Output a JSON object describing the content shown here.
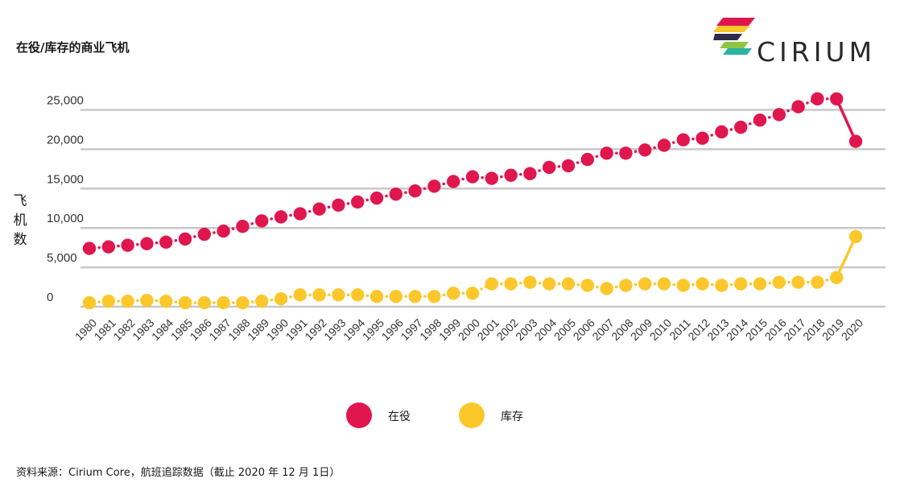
{
  "title": "在役/库存的商业飞机",
  "logo": {
    "text": "CIRIUM",
    "name": "cirium-logo"
  },
  "source": "资料来源：Cirium Core，航班追踪数据（截止 2020 年 12 月 1日）",
  "colors": {
    "in_service": "#e0174f",
    "storage": "#fcc72b",
    "grid": "#c8c8c8"
  },
  "chart_data": {
    "type": "line",
    "title": "在役/库存的商业飞机",
    "xlabel": "",
    "ylabel": "飞机数",
    "ylim": [
      0,
      25000
    ],
    "y_ticks": [
      "0",
      "5,000",
      "10,000",
      "15,000",
      "20,000",
      "25,000"
    ],
    "y_tick_values": [
      0,
      5000,
      10000,
      15000,
      20000,
      25000
    ],
    "grid": true,
    "legend_position": "bottom",
    "x": [
      "1980",
      "1981",
      "1982",
      "1983",
      "1984",
      "1985",
      "1986",
      "1987",
      "1988",
      "1989",
      "1990",
      "1991",
      "1992",
      "1993",
      "1994",
      "1995",
      "1996",
      "1997",
      "1998",
      "1999",
      "2000",
      "2001",
      "2002",
      "2003",
      "2004",
      "2005",
      "2006",
      "2007",
      "2008",
      "2009",
      "2010",
      "2011",
      "2012",
      "2013",
      "2014",
      "2015",
      "2016",
      "2017",
      "2018",
      "2019",
      "2020"
    ],
    "series": [
      {
        "name": "在役",
        "color": "#e0174f",
        "values": [
          7400,
          7600,
          7800,
          8000,
          8200,
          8600,
          9200,
          9600,
          10200,
          10900,
          11400,
          11800,
          12400,
          12900,
          13300,
          13800,
          14300,
          14700,
          15300,
          15900,
          16500,
          16300,
          16700,
          16900,
          17700,
          17900,
          18700,
          19500,
          19500,
          19900,
          20500,
          21200,
          21400,
          22200,
          22800,
          23700,
          24400,
          25400,
          26400,
          26400,
          21000
        ]
      },
      {
        "name": "库存",
        "color": "#fcc72b",
        "values": [
          500,
          700,
          700,
          800,
          700,
          500,
          500,
          500,
          500,
          700,
          1000,
          1500,
          1500,
          1500,
          1500,
          1300,
          1300,
          1300,
          1300,
          1700,
          1700,
          2900,
          2900,
          3100,
          2900,
          2900,
          2700,
          2300,
          2700,
          2900,
          2900,
          2700,
          2900,
          2700,
          2900,
          2900,
          3100,
          3100,
          3100,
          3700,
          8900
        ]
      }
    ]
  }
}
